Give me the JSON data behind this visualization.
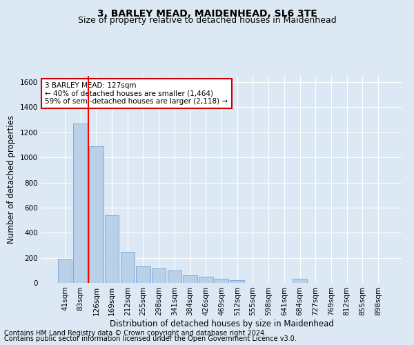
{
  "title": "3, BARLEY MEAD, MAIDENHEAD, SL6 3TE",
  "subtitle": "Size of property relative to detached houses in Maidenhead",
  "xlabel": "Distribution of detached houses by size in Maidenhead",
  "ylabel": "Number of detached properties",
  "footer_line1": "Contains HM Land Registry data © Crown copyright and database right 2024.",
  "footer_line2": "Contains public sector information licensed under the Open Government Licence v3.0.",
  "annotation_title": "3 BARLEY MEAD: 127sqm",
  "annotation_line1": "← 40% of detached houses are smaller (1,464)",
  "annotation_line2": "59% of semi-detached houses are larger (2,118) →",
  "bar_categories": [
    "41sqm",
    "83sqm",
    "126sqm",
    "169sqm",
    "212sqm",
    "255sqm",
    "298sqm",
    "341sqm",
    "384sqm",
    "426sqm",
    "469sqm",
    "512sqm",
    "555sqm",
    "598sqm",
    "641sqm",
    "684sqm",
    "727sqm",
    "769sqm",
    "812sqm",
    "855sqm",
    "898sqm"
  ],
  "bar_values": [
    190,
    1270,
    1090,
    540,
    250,
    130,
    115,
    100,
    60,
    50,
    35,
    20,
    0,
    0,
    0,
    35,
    0,
    0,
    0,
    0,
    0
  ],
  "bar_color": "#b8d0e8",
  "bar_edge_color": "#6699cc",
  "red_line_x": 2.5,
  "ylim": [
    0,
    1650
  ],
  "yticks": [
    0,
    200,
    400,
    600,
    800,
    1000,
    1200,
    1400,
    1600
  ],
  "background_color": "#dce9f5",
  "grid_color": "#ffffff",
  "annotation_box_facecolor": "#ffffff",
  "annotation_box_edgecolor": "#cc0000",
  "title_fontsize": 10,
  "subtitle_fontsize": 9,
  "xlabel_fontsize": 8.5,
  "ylabel_fontsize": 8.5,
  "tick_fontsize": 7.5,
  "footer_fontsize": 7,
  "annotation_fontsize": 7.5
}
